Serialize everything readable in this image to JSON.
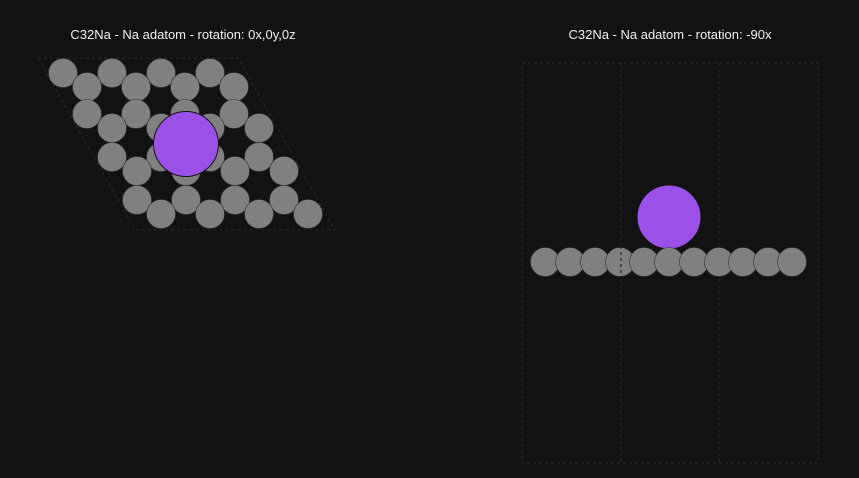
{
  "panels": [
    {
      "title": "C32Na - Na adatom - rotation: 0x,0y,0z"
    },
    {
      "title": "C32Na - Na adatom - rotation: -90x"
    }
  ],
  "colors": {
    "carbon": "#808080",
    "sodium": "#9b51e8",
    "background": "#121212",
    "cell": "#000000"
  },
  "atoms": {
    "carbon_count": 32,
    "sodium_count": 1
  }
}
